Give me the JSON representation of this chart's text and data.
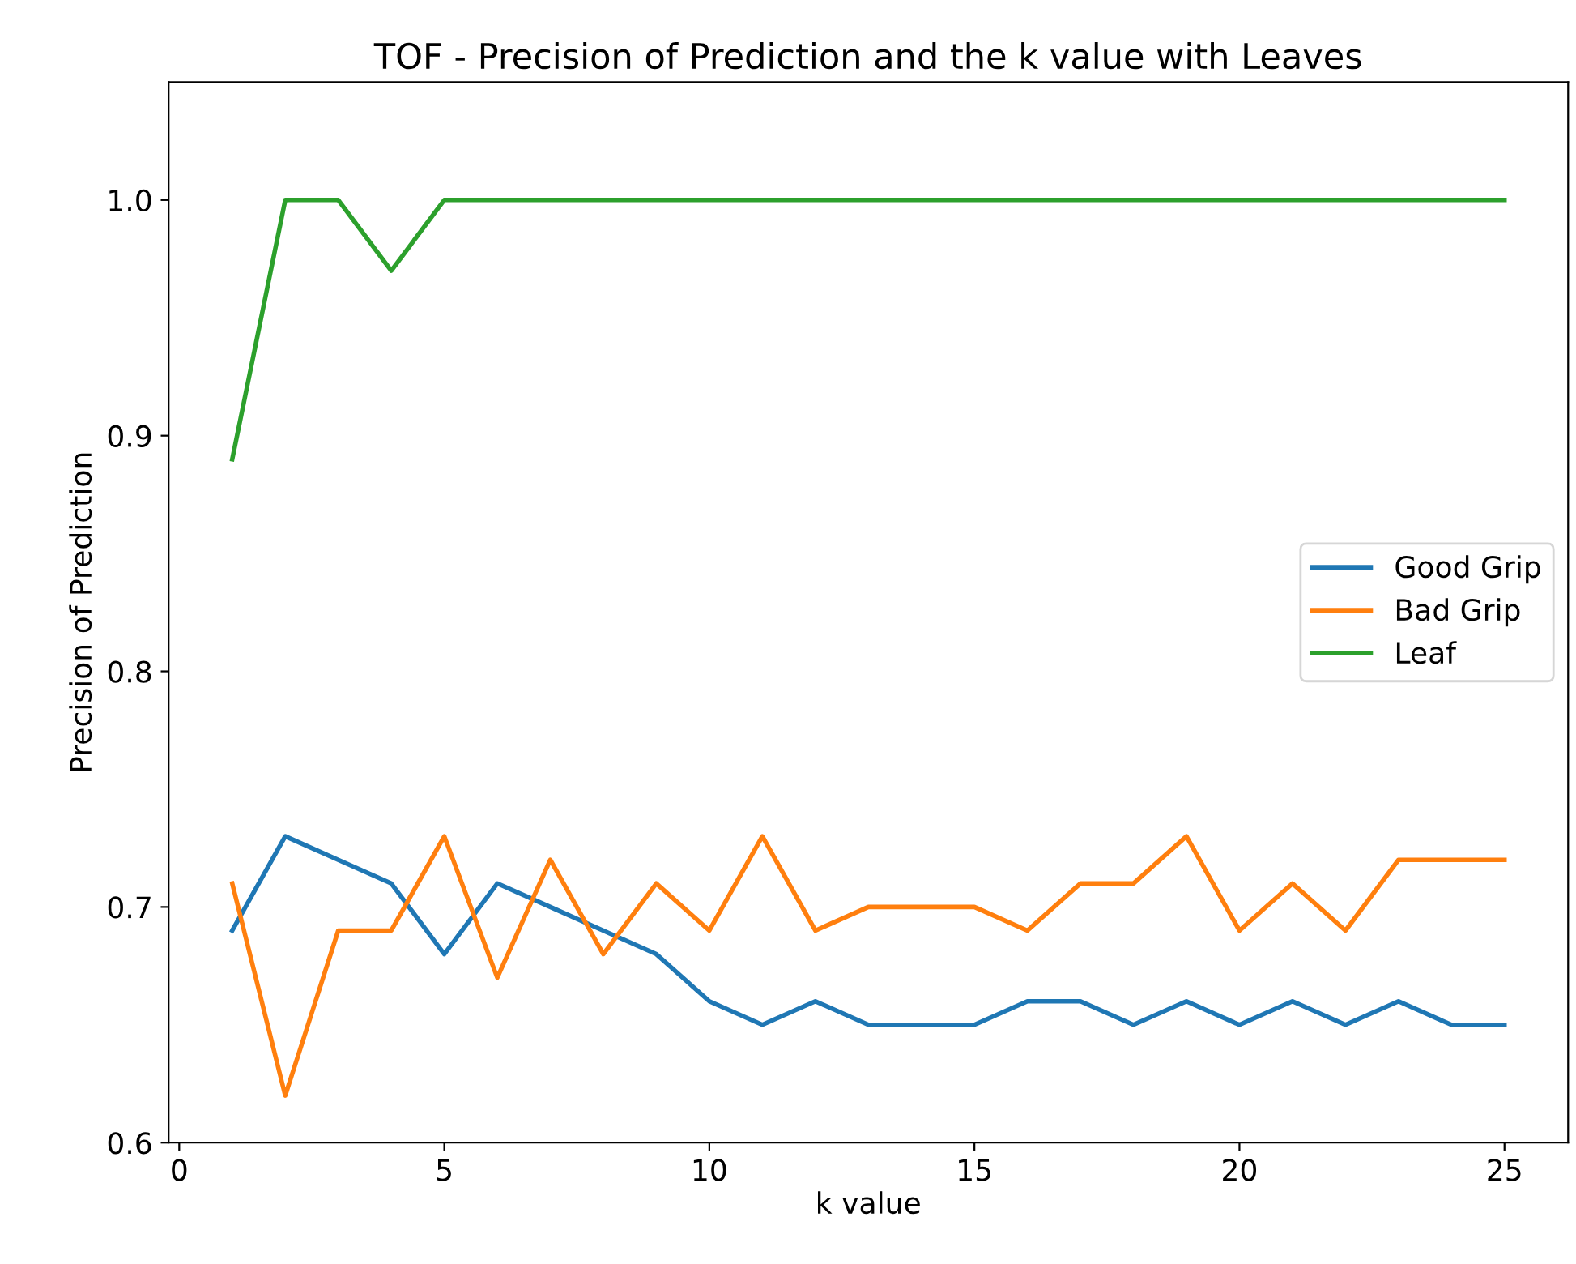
{
  "chart_data": {
    "type": "line",
    "title": "TOF - Precision of Prediction and the k value with Leaves",
    "xlabel": "k value",
    "ylabel": "Precision of Prediction",
    "x": [
      1,
      2,
      3,
      4,
      5,
      6,
      7,
      8,
      9,
      10,
      11,
      12,
      13,
      14,
      15,
      16,
      17,
      18,
      19,
      20,
      21,
      22,
      23,
      24,
      25
    ],
    "series": [
      {
        "name": "Good Grip",
        "color": "#1f77b4",
        "values": [
          0.69,
          0.73,
          0.72,
          0.71,
          0.68,
          0.71,
          0.7,
          0.69,
          0.68,
          0.66,
          0.65,
          0.66,
          0.65,
          0.65,
          0.65,
          0.66,
          0.66,
          0.65,
          0.66,
          0.65,
          0.66,
          0.65,
          0.66,
          0.65,
          0.65
        ]
      },
      {
        "name": "Bad Grip",
        "color": "#ff7f0e",
        "values": [
          0.71,
          0.62,
          0.69,
          0.69,
          0.73,
          0.67,
          0.72,
          0.68,
          0.71,
          0.69,
          0.73,
          0.69,
          0.7,
          0.7,
          0.7,
          0.69,
          0.71,
          0.71,
          0.73,
          0.69,
          0.71,
          0.69,
          0.72,
          0.72,
          0.72
        ]
      },
      {
        "name": "Leaf",
        "color": "#2ca02c",
        "values": [
          0.89,
          1.0,
          1.0,
          0.97,
          1.0,
          1.0,
          1.0,
          1.0,
          1.0,
          1.0,
          1.0,
          1.0,
          1.0,
          1.0,
          1.0,
          1.0,
          1.0,
          1.0,
          1.0,
          1.0,
          1.0,
          1.0,
          1.0,
          1.0,
          1.0
        ]
      }
    ],
    "xlim": [
      -0.2,
      26.2
    ],
    "xticks": [
      0,
      5,
      10,
      15,
      20,
      25
    ],
    "ylim": [
      0.6,
      1.05
    ],
    "yticks": [
      {
        "value": 0.6,
        "label": "0.6"
      },
      {
        "value": 0.7,
        "label": "0.7"
      },
      {
        "value": 0.8,
        "label": "0.8"
      },
      {
        "value": 0.9,
        "label": "0.9"
      },
      {
        "value": 1.0,
        "label": "1.0"
      }
    ],
    "legend": "center right",
    "grid": false
  }
}
